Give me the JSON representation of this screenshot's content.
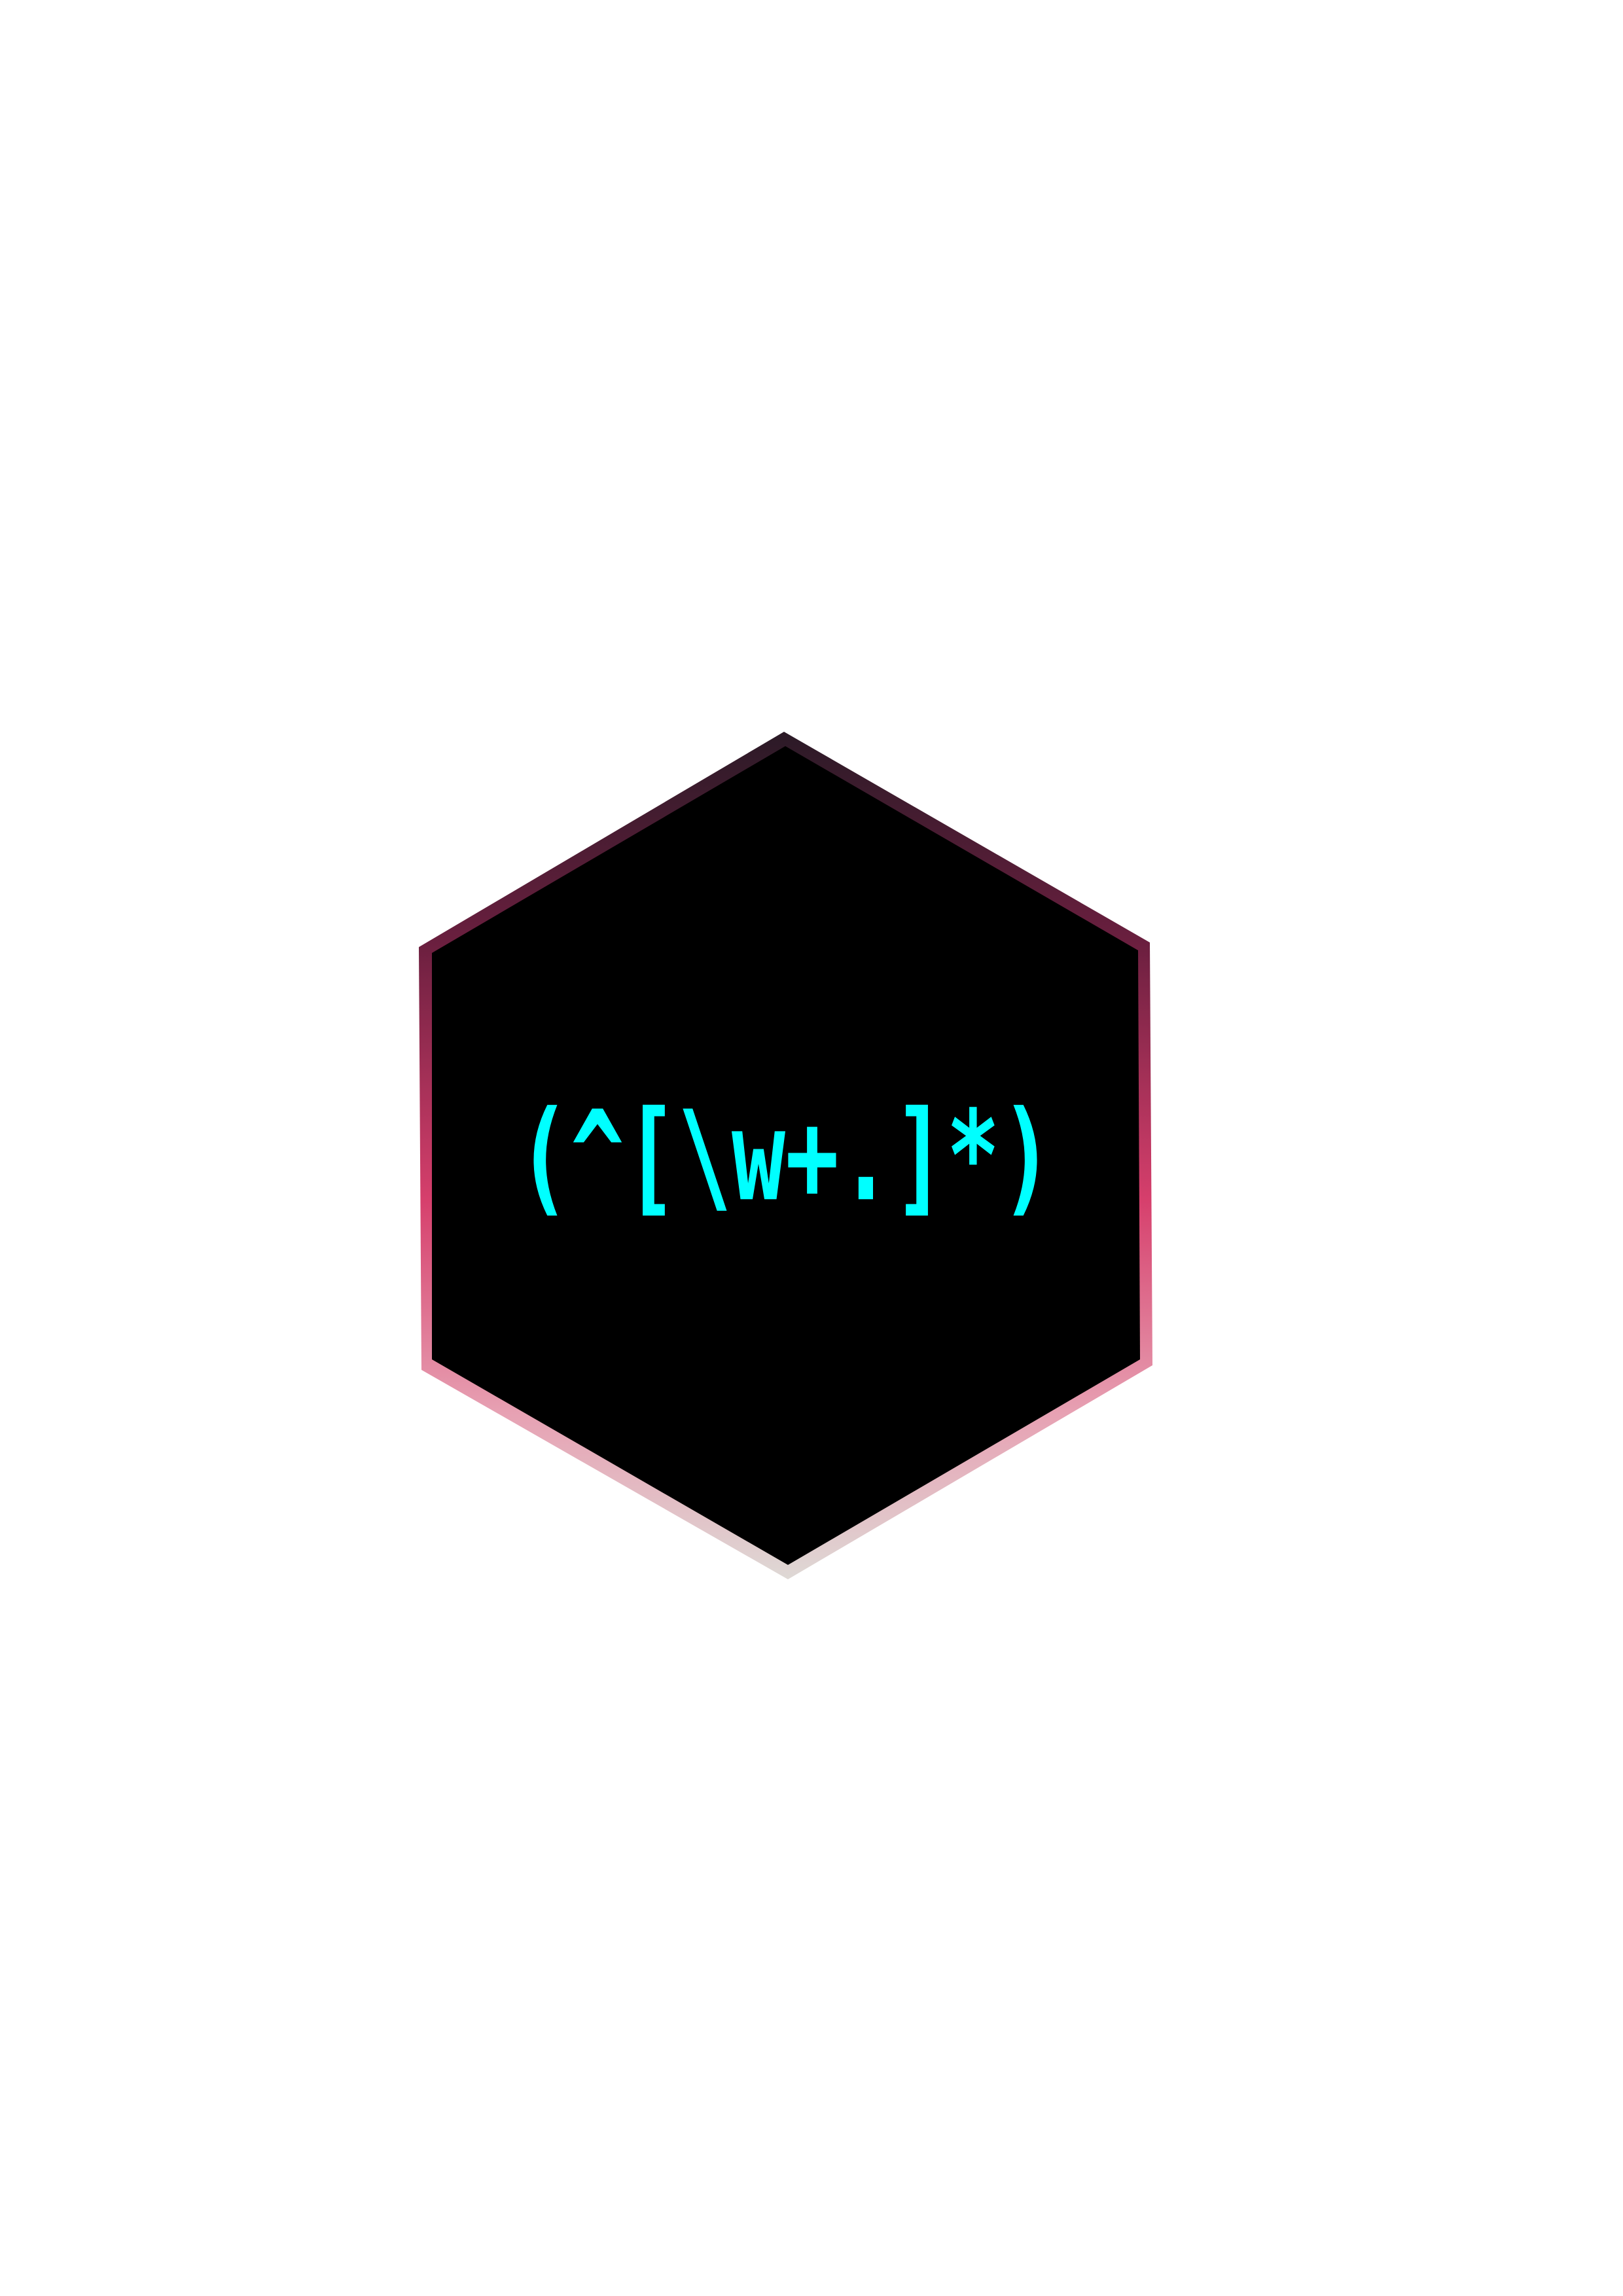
{
  "badge": {
    "text": "(^[\\w+.]*)",
    "fill_color": "#000000",
    "text_color": "#00ffff",
    "border_gradient": [
      "#2a1a26",
      "#6b1f3f",
      "#d63f6c",
      "#e7a1b3",
      "#dedad6"
    ]
  }
}
